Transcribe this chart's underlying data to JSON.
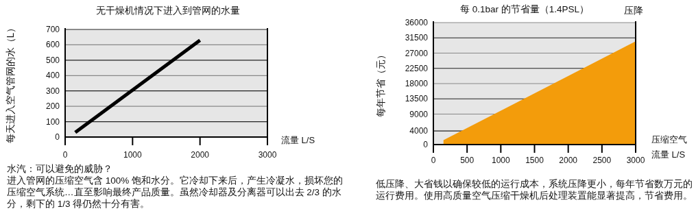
{
  "chart_data": [
    {
      "type": "line",
      "title": "无干燥机情况下进入到管网的水量",
      "xlabel": "流量 L/S",
      "ylabel": "每天进入空气管网的水（L）",
      "xlim": [
        0,
        3000
      ],
      "xticks": [
        0,
        1000,
        2000,
        3000
      ],
      "ylim": [
        0,
        700
      ],
      "yticks": [
        0,
        100,
        200,
        300,
        400,
        500,
        600,
        700
      ],
      "grid": "y",
      "series": [
        {
          "color": "#000000",
          "x": [
            150,
            2000
          ],
          "values": [
            30,
            630
          ]
        }
      ],
      "annotations": [
        "水汽：可以避免的威胁？",
        "进入管网的压缩空气含 100% 饱和水分。它冷却下来后，产生冷凝水，损坏您的压缩空气系统…直至影响最终产品质量。虽然冷却器及分离器可以出去 2/3 的水分，剩下的 1/3 得仍然十分有害。"
      ]
    },
    {
      "type": "area",
      "title": "每 0.1bar 的节省量（1.4PSL）",
      "xlabel": "压缩空气流量 L/S",
      "ylabel": "每年节省（元）",
      "xlim": [
        0,
        3000
      ],
      "xticks": [
        0,
        500,
        1000,
        1500,
        2000,
        2500,
        3000
      ],
      "ylim": [
        0,
        36000
      ],
      "yticks": [
        0,
        4000,
        9000,
        13500,
        18000,
        22500,
        27000,
        31500,
        36000
      ],
      "grid": "y",
      "series": [
        {
          "color": "#f39c0b",
          "x": [
            150,
            3000
          ],
          "values": [
            1300,
            30500
          ]
        }
      ],
      "annotations": [
        "压降",
        "低压降、大省钱以确保较低的运行成本，系统压降更小，每年节省数万元的运行费用。使用高质量空气压缩干燥机后处理装置能显著提高，节省费用。"
      ]
    }
  ]
}
